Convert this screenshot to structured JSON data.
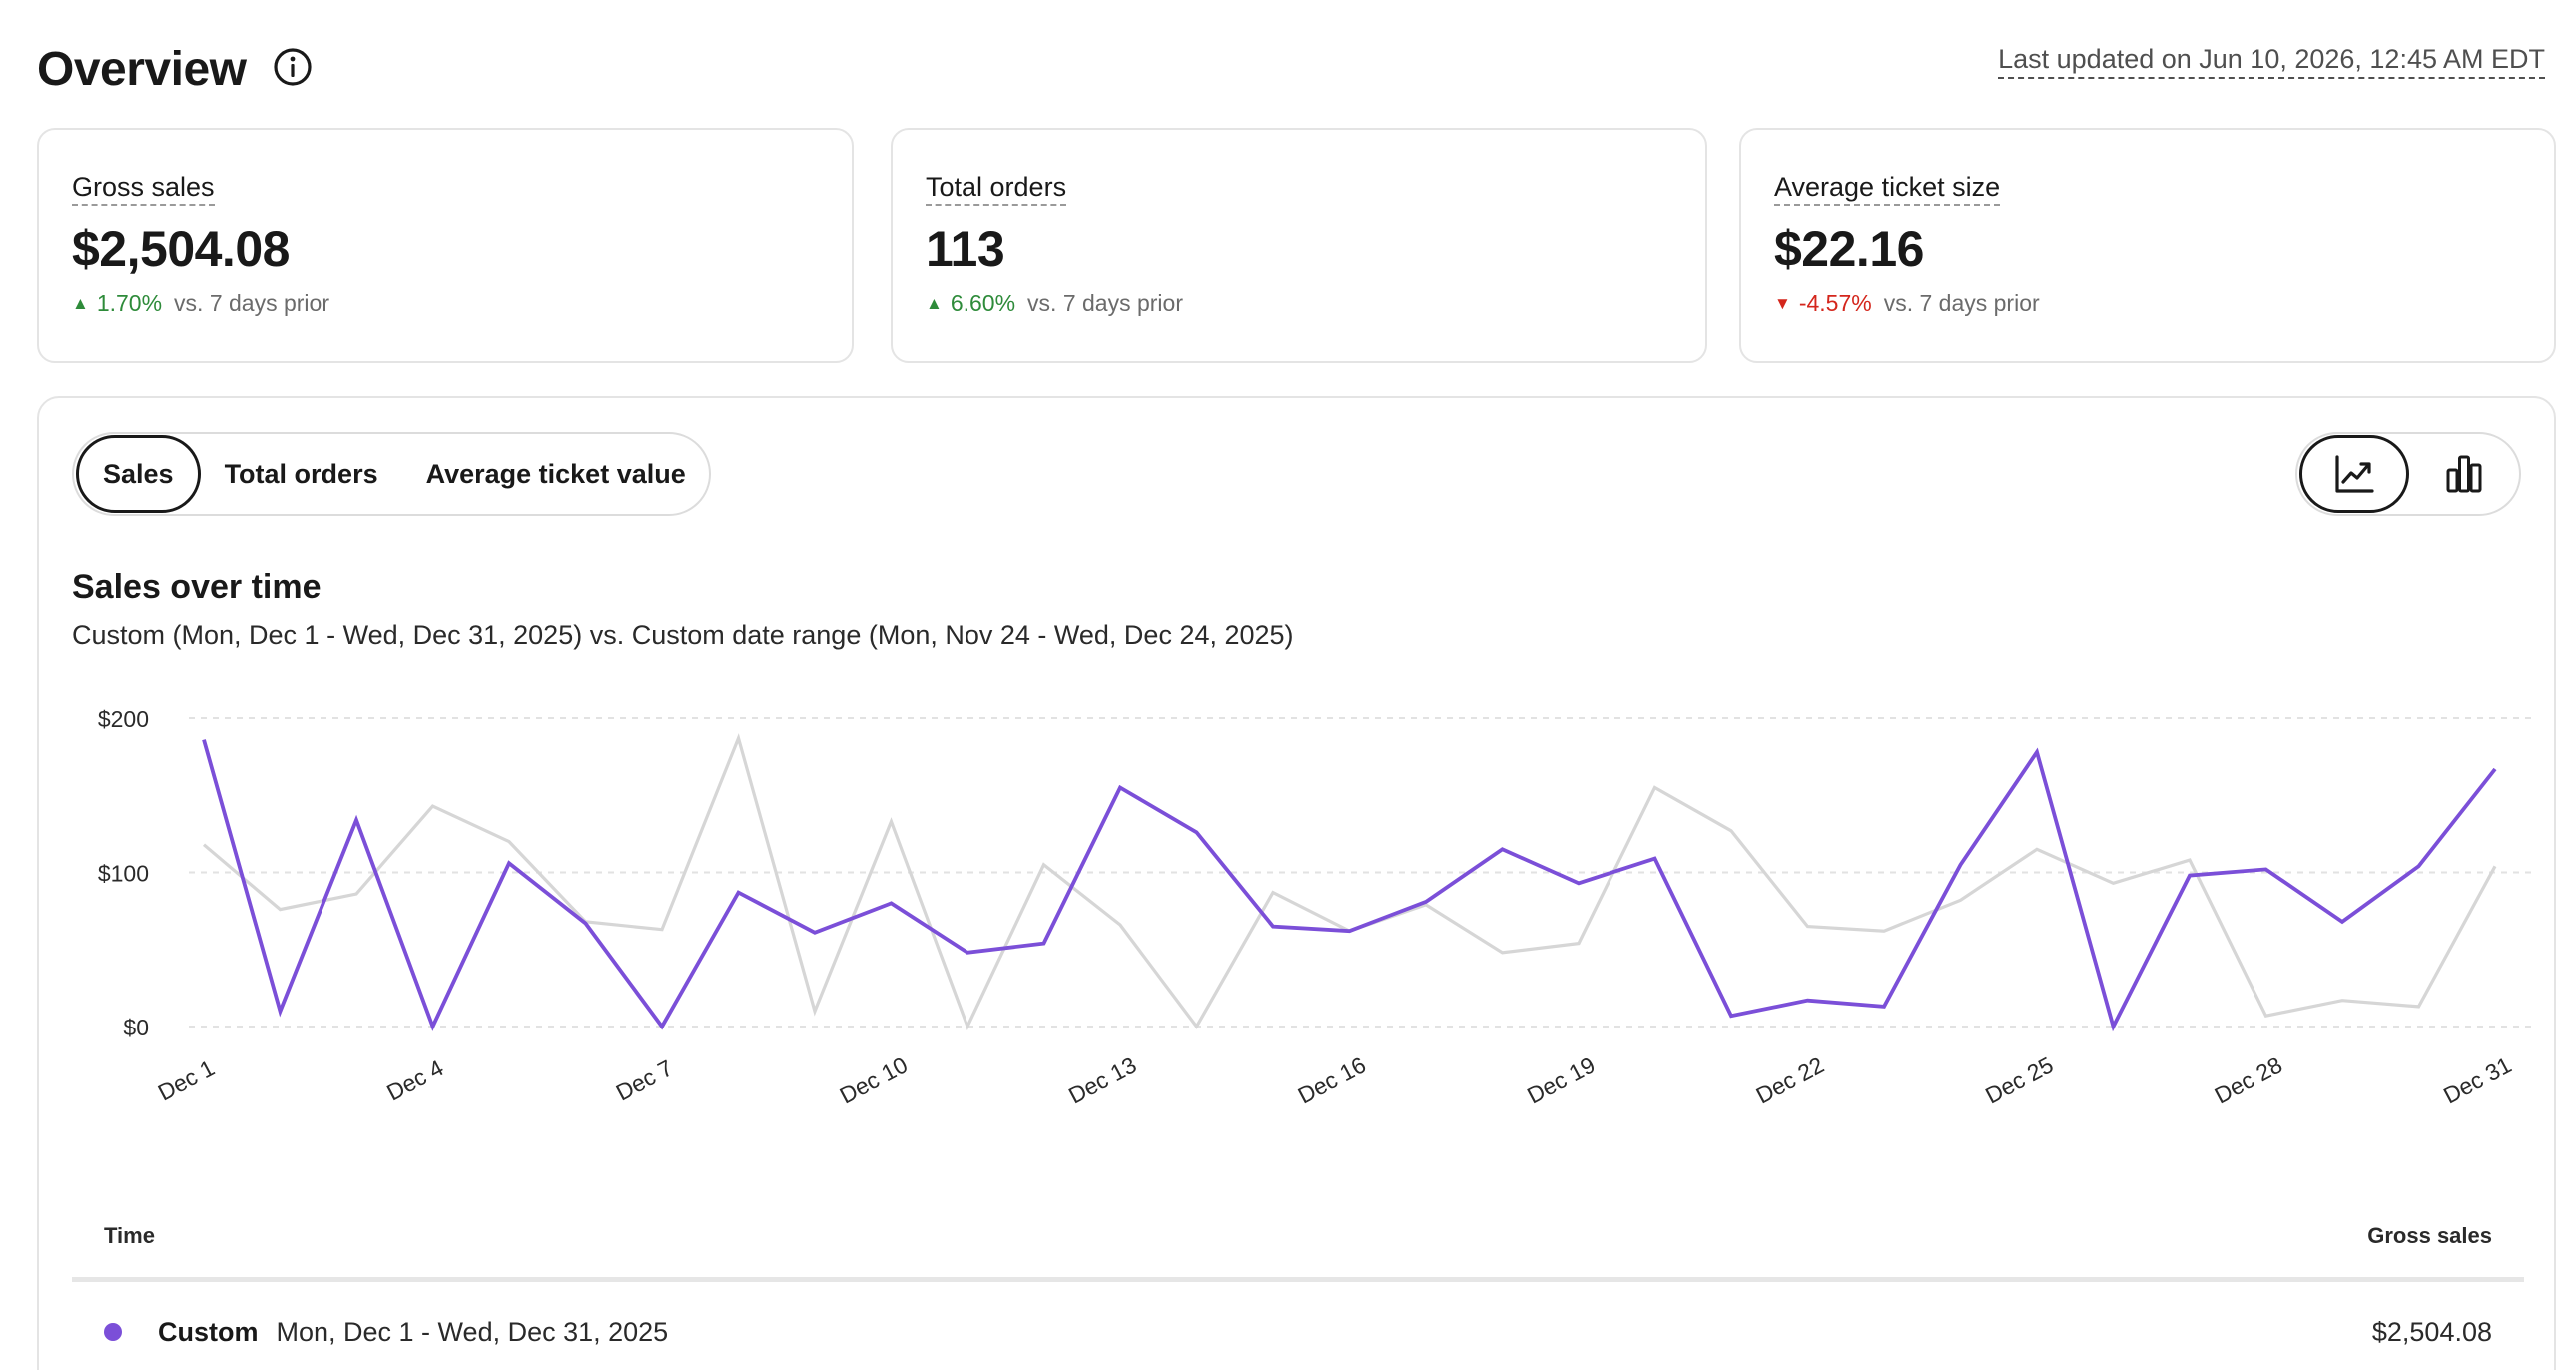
{
  "header": {
    "title": "Overview",
    "last_updated": "Last updated on Jun 10, 2026, 12:45 AM EDT"
  },
  "metrics": [
    {
      "label": "Gross sales",
      "value": "$2,504.08",
      "delta": "1.70%",
      "direction": "up",
      "comparison": "vs. 7 days prior"
    },
    {
      "label": "Total orders",
      "value": "113",
      "delta": "6.60%",
      "direction": "up",
      "comparison": "vs. 7 days prior"
    },
    {
      "label": "Average ticket size",
      "value": "$22.16",
      "delta": "-4.57%",
      "direction": "down",
      "comparison": "vs. 7 days prior"
    }
  ],
  "tabs": {
    "items": [
      "Sales",
      "Total orders",
      "Average ticket value"
    ],
    "active": "Sales"
  },
  "view_toggle": {
    "options": [
      "line-chart-icon",
      "bar-chart-icon"
    ],
    "active": "line-chart-icon"
  },
  "colors": {
    "primary_series": "#7b4fd8",
    "comparison_series": "#d6d6d6",
    "up": "#2e8b3a",
    "down": "#d4261c"
  },
  "chart_data": {
    "type": "line",
    "title": "Sales over time",
    "subtitle": "Custom (Mon, Dec 1 - Wed, Dec 31, 2025) vs. Custom date range (Mon, Nov 24 - Wed, Dec 24, 2025)",
    "x": [
      1,
      2,
      3,
      4,
      5,
      6,
      7,
      8,
      9,
      10,
      11,
      12,
      13,
      14,
      15,
      16,
      17,
      18,
      19,
      20,
      21,
      22,
      23,
      24,
      25,
      26,
      27,
      28,
      29,
      30,
      31
    ],
    "x_tick_labels": [
      "Dec 1",
      "Dec 4",
      "Dec 7",
      "Dec 10",
      "Dec 13",
      "Dec 16",
      "Dec 19",
      "Dec 22",
      "Dec 25",
      "Dec 28",
      "Dec 31"
    ],
    "x_tick_positions": [
      1,
      4,
      7,
      10,
      13,
      16,
      19,
      22,
      25,
      28,
      31
    ],
    "ylim": [
      0,
      200
    ],
    "y_ticks": [
      0,
      100,
      200
    ],
    "y_tick_labels": [
      "$0",
      "$100",
      "$200"
    ],
    "grid": true,
    "series": [
      {
        "values": [
          186,
          10,
          134,
          0,
          106,
          67,
          0,
          87,
          61,
          80,
          48,
          54,
          155,
          126,
          65,
          62,
          81,
          115,
          93,
          109,
          7,
          17,
          13,
          105,
          178,
          0,
          98,
          102,
          68,
          104,
          167
        ]
      },
      {
        "values": [
          118,
          76,
          86,
          143,
          120,
          68,
          63,
          187,
          10,
          133,
          0,
          105,
          66,
          0,
          87,
          62,
          79,
          48,
          54,
          155,
          127,
          65,
          62,
          82,
          115,
          93,
          108,
          7,
          17,
          13,
          104
        ]
      }
    ]
  },
  "table": {
    "col_time": "Time",
    "col_gross": "Gross sales",
    "rows": [
      {
        "name": "Custom",
        "range": "Mon, Dec 1 - Wed, Dec 31, 2025",
        "total": "$2,504.08"
      }
    ]
  }
}
